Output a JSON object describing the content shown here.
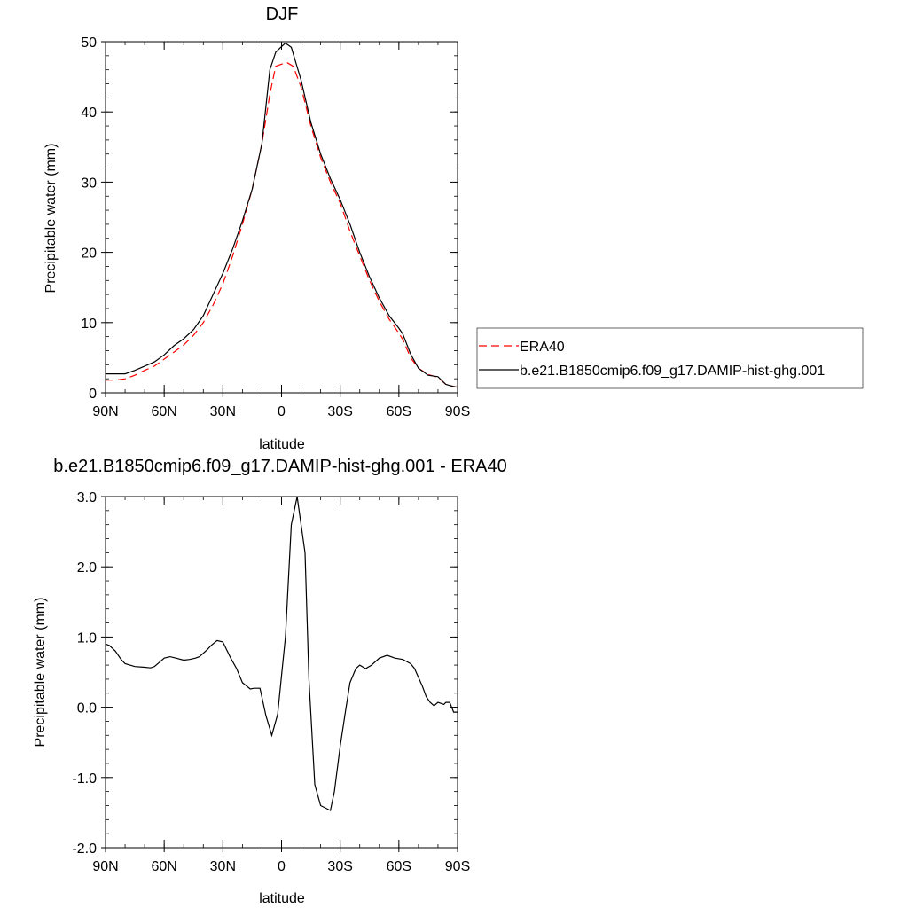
{
  "chart_data": [
    {
      "type": "line",
      "title": "DJF",
      "xlabel": "latitude",
      "ylabel": "Precipitable water (mm)",
      "xlim": [
        -90,
        90
      ],
      "ylim": [
        0,
        50
      ],
      "x_ticks": [
        -90,
        -60,
        -30,
        0,
        30,
        60,
        90
      ],
      "x_tick_labels": [
        "90N",
        "60N",
        "30N",
        "0",
        "30S",
        "60S",
        "90S"
      ],
      "y_ticks": [
        0,
        10,
        20,
        30,
        40,
        50
      ],
      "y_tick_labels": [
        "0",
        "10",
        "20",
        "30",
        "40",
        "50"
      ],
      "grid": false,
      "legend": {
        "placement": "right"
      },
      "series": [
        {
          "name": "ERA40",
          "color": "#ff0000",
          "dash": "dashed",
          "x": [
            -90,
            -85,
            -80,
            -75,
            -70,
            -65,
            -60,
            -55,
            -50,
            -45,
            -40,
            -35,
            -30,
            -25,
            -20,
            -15,
            -10,
            -6,
            -3,
            0,
            3,
            6,
            10,
            15,
            20,
            25,
            30,
            35,
            40,
            45,
            50,
            55,
            60,
            62,
            66,
            70,
            75,
            80,
            84,
            88,
            90
          ],
          "y": [
            1.8,
            1.8,
            2.0,
            2.5,
            3.2,
            3.8,
            4.8,
            5.8,
            6.8,
            8.2,
            10.0,
            12.5,
            15.5,
            19.5,
            24.0,
            29.0,
            35.5,
            42.5,
            46.5,
            46.8,
            47.0,
            46.5,
            43.5,
            38.0,
            33.5,
            30.0,
            27.0,
            23.0,
            19.5,
            16.0,
            13.0,
            10.5,
            8.5,
            7.6,
            5.0,
            3.5,
            2.6,
            2.2,
            1.2,
            0.9,
            0.8
          ]
        },
        {
          "name": "b.e21.B1850cmip6.f09_g17.DAMIP-hist-ghg.001",
          "color": "#000000",
          "dash": "solid",
          "x": [
            -90,
            -85,
            -80,
            -75,
            -70,
            -65,
            -60,
            -55,
            -50,
            -45,
            -40,
            -35,
            -30,
            -25,
            -20,
            -15,
            -10,
            -6,
            -3,
            0,
            2,
            5,
            10,
            15,
            20,
            25,
            30,
            35,
            40,
            45,
            50,
            55,
            60,
            62,
            66,
            70,
            75,
            80,
            84,
            88,
            90
          ],
          "y": [
            2.7,
            2.7,
            2.7,
            3.2,
            3.8,
            4.4,
            5.4,
            6.7,
            7.7,
            9.0,
            11.0,
            14.0,
            17.0,
            20.5,
            24.5,
            29.0,
            35.5,
            46.0,
            48.5,
            49.3,
            49.8,
            49.2,
            44.5,
            38.5,
            34.0,
            30.5,
            27.5,
            24.0,
            20.0,
            16.5,
            13.5,
            11.0,
            9.2,
            8.4,
            5.5,
            3.5,
            2.5,
            2.3,
            1.2,
            0.9,
            0.8
          ]
        }
      ]
    },
    {
      "type": "line",
      "title": "b.e21.B1850cmip6.f09_g17.DAMIP-hist-ghg.001 - ERA40",
      "xlabel": "latitude",
      "ylabel": "Precipitable water (mm)",
      "xlim": [
        -90,
        90
      ],
      "ylim": [
        -2,
        3
      ],
      "x_ticks": [
        -90,
        -60,
        -30,
        0,
        30,
        60,
        90
      ],
      "x_tick_labels": [
        "90N",
        "60N",
        "30N",
        "0",
        "30S",
        "60S",
        "90S"
      ],
      "y_ticks": [
        -2,
        -1,
        0,
        1,
        2,
        3
      ],
      "y_tick_labels": [
        "-2.0",
        "-1.0",
        "0.0",
        "1.0",
        "2.0",
        "3.0"
      ],
      "grid": false,
      "series": [
        {
          "color": "#000000",
          "dash": "solid",
          "x": [
            -90,
            -88,
            -85,
            -82,
            -80,
            -75,
            -70,
            -67,
            -65,
            -62,
            -60,
            -57,
            -54,
            -50,
            -47,
            -44,
            -42,
            -38,
            -36,
            -33,
            -30,
            -26,
            -23,
            -20,
            -16,
            -14,
            -11,
            -8,
            -5,
            -2,
            2,
            5,
            8,
            12,
            14,
            17,
            20,
            25,
            27,
            30,
            33,
            35,
            38,
            40,
            43,
            46,
            50,
            54,
            58,
            62,
            64,
            66,
            68,
            72,
            74,
            76,
            78,
            80,
            83,
            84,
            86,
            88,
            90
          ],
          "y": [
            0.9,
            0.88,
            0.8,
            0.68,
            0.62,
            0.58,
            0.57,
            0.56,
            0.58,
            0.65,
            0.7,
            0.72,
            0.7,
            0.67,
            0.68,
            0.7,
            0.72,
            0.82,
            0.88,
            0.95,
            0.93,
            0.7,
            0.55,
            0.35,
            0.26,
            0.27,
            0.27,
            -0.12,
            -0.4,
            -0.1,
            1.0,
            2.6,
            3.0,
            2.2,
            0.4,
            -1.1,
            -1.4,
            -1.47,
            -1.2,
            -0.55,
            0.0,
            0.35,
            0.55,
            0.6,
            0.55,
            0.6,
            0.7,
            0.74,
            0.7,
            0.68,
            0.65,
            0.62,
            0.55,
            0.3,
            0.15,
            0.07,
            0.02,
            0.07,
            0.04,
            0.07,
            0.07,
            -0.07,
            -0.07
          ]
        }
      ]
    }
  ]
}
